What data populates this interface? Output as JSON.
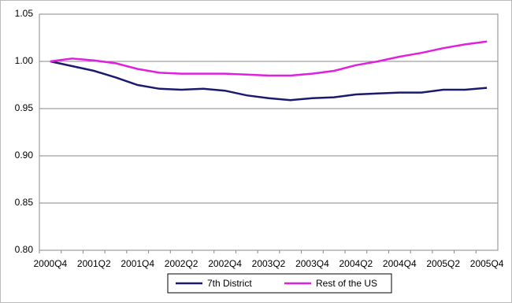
{
  "chart_data": {
    "type": "line",
    "categories": [
      "2000Q4",
      null,
      "2001Q2",
      null,
      "2001Q4",
      null,
      "2002Q2",
      null,
      "2002Q4",
      null,
      "2003Q2",
      null,
      "2003Q4",
      null,
      "2004Q2",
      null,
      "2004Q4",
      null,
      "2005Q2",
      null,
      "2005Q4"
    ],
    "series": [
      {
        "name": "7th District",
        "color": "#1a1a6e",
        "values": [
          1.0,
          0.995,
          0.99,
          0.983,
          0.975,
          0.971,
          0.97,
          0.971,
          0.969,
          0.964,
          0.961,
          0.959,
          0.961,
          0.962,
          0.965,
          0.966,
          0.967,
          0.967,
          0.97,
          0.97,
          0.972
        ]
      },
      {
        "name": "Rest of the US",
        "color": "#e020e0",
        "values": [
          1.0,
          1.003,
          1.001,
          0.998,
          0.992,
          0.988,
          0.987,
          0.987,
          0.987,
          0.986,
          0.985,
          0.985,
          0.987,
          0.99,
          0.996,
          1.0,
          1.005,
          1.009,
          1.014,
          1.018,
          1.021
        ]
      }
    ],
    "ylim": [
      0.8,
      1.05
    ],
    "yticks": [
      {
        "value": 0.8,
        "label": "0.80"
      },
      0.85,
      {
        "value": 0.9,
        "label": "0.90"
      },
      0.95,
      {
        "value": 1.0,
        "label": "1.00"
      },
      1.05
    ],
    "grid": true,
    "legend": "bottom"
  }
}
